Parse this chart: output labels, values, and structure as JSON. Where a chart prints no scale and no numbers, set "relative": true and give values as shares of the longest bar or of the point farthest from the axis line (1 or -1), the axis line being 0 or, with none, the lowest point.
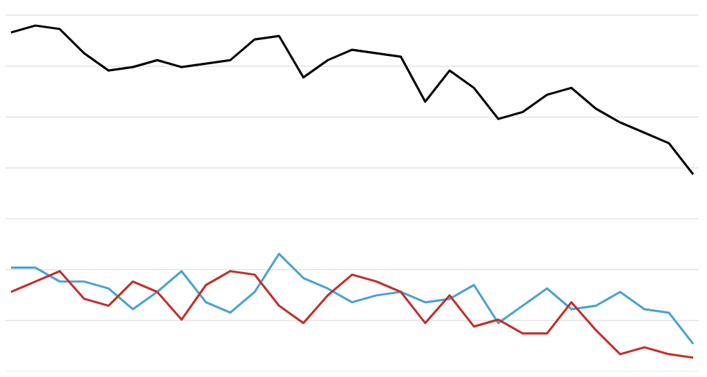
{
  "chart_data": {
    "type": "line",
    "relative": true,
    "grid": "y",
    "categories": [
      null,
      null,
      null,
      null,
      null,
      null,
      null,
      null,
      null,
      null,
      null,
      null,
      null,
      null,
      null,
      null,
      null,
      null,
      null,
      null,
      null,
      null,
      null,
      null,
      null,
      null,
      null,
      null,
      null
    ],
    "series": [
      {
        "color": "#000000",
        "values": [
          0.98,
          1.0,
          0.99,
          0.92,
          0.87,
          0.88,
          0.9,
          0.88,
          0.89,
          0.9,
          0.96,
          0.97,
          0.85,
          0.9,
          0.93,
          0.92,
          0.91,
          0.78,
          0.87,
          0.82,
          0.73,
          0.75,
          0.8,
          0.82,
          0.76,
          0.72,
          0.69,
          0.66,
          0.57
        ]
      },
      {
        "color": "#4ba3d0",
        "values": [
          0.3,
          0.3,
          0.26,
          0.26,
          0.24,
          0.18,
          0.23,
          0.29,
          0.2,
          0.17,
          0.23,
          0.34,
          0.27,
          0.24,
          0.2,
          0.22,
          0.23,
          0.2,
          0.21,
          0.25,
          0.14,
          0.19,
          0.24,
          0.18,
          0.19,
          0.23,
          0.18,
          0.17,
          0.08
        ]
      },
      {
        "color": "#c0312b",
        "values": [
          0.23,
          0.26,
          0.29,
          0.21,
          0.19,
          0.26,
          0.23,
          0.15,
          0.25,
          0.29,
          0.28,
          0.19,
          0.14,
          0.22,
          0.28,
          0.26,
          0.23,
          0.14,
          0.22,
          0.13,
          0.15,
          0.11,
          0.11,
          0.2,
          0.12,
          0.05,
          0.07,
          0.05,
          0.04
        ]
      }
    ],
    "marker": "none",
    "line_style": "solid"
  }
}
